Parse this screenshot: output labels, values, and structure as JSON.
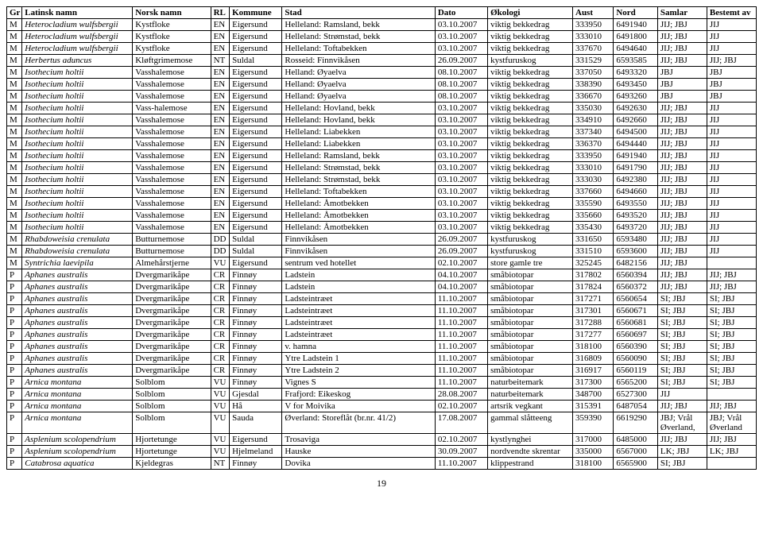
{
  "headers": [
    "Gr",
    "Latinsk namn",
    "Norsk namn",
    "RL",
    "Kommune",
    "Stad",
    "Dato",
    "Økologi",
    "Aust",
    "Nord",
    "Samlar",
    "Bestemt av"
  ],
  "rows": [
    [
      "M",
      "Heterocladium wulfsbergii",
      "Kystfloke",
      "EN",
      "Eigersund",
      "Helleland: Ramsland, bekk",
      "03.10.2007",
      "viktig bekkedrag",
      "333950",
      "6491940",
      "JIJ; JBJ",
      "JIJ"
    ],
    [
      "M",
      "Heterocladium wulfsbergii",
      "Kystfloke",
      "EN",
      "Eigersund",
      "Helleland: Strømstad, bekk",
      "03.10.2007",
      "viktig bekkedrag",
      "333010",
      "6491800",
      "JIJ; JBJ",
      "JIJ"
    ],
    [
      "M",
      "Heterocladium wulfsbergii",
      "Kystfloke",
      "EN",
      "Eigersund",
      "Helleland: Toftabekken",
      "03.10.2007",
      "viktig bekkedrag",
      "337670",
      "6494640",
      "JIJ; JBJ",
      "JIJ"
    ],
    [
      "M",
      "Herbertus aduncus",
      "Kløftgrimemose",
      "NT",
      "Suldal",
      "Rosseid: Finnvikåsen",
      "26.09.2007",
      "kystfuruskog",
      "331529",
      "6593585",
      "JIJ; JBJ",
      "JIJ; JBJ"
    ],
    [
      "M",
      "Isothecium holtii",
      "Vasshalemose",
      "EN",
      "Eigersund",
      "Helland: Øyaelva",
      "08.10.2007",
      "viktig bekkedrag",
      "337050",
      "6493320",
      "JBJ",
      "JBJ"
    ],
    [
      "M",
      "Isothecium holtii",
      "Vasshalemose",
      "EN",
      "Eigersund",
      "Helland: Øyaelva",
      "08.10.2007",
      "viktig bekkedrag",
      "338390",
      "6493450",
      "JBJ",
      "JBJ"
    ],
    [
      "M",
      "Isothecium holtii",
      "Vasshalemose",
      "EN",
      "Eigersund",
      "Helland: Øyaelva",
      "08.10.2007",
      "viktig bekkedrag",
      "336670",
      "6493260",
      "JBJ",
      "JBJ"
    ],
    [
      "M",
      "Isothecium holtii",
      "Vass-halemose",
      "EN",
      "Eigersund",
      "Helleland: Hovland, bekk",
      "03.10.2007",
      "viktig bekkedrag",
      "335030",
      "6492630",
      "JIJ; JBJ",
      "JIJ"
    ],
    [
      "M",
      "Isothecium holtii",
      "Vasshalemose",
      "EN",
      "Eigersund",
      "Helleland: Hovland, bekk",
      "03.10.2007",
      "viktig bekkedrag",
      "334910",
      "6492660",
      "JIJ; JBJ",
      "JIJ"
    ],
    [
      "M",
      "Isothecium holtii",
      "Vasshalemose",
      "EN",
      "Eigersund",
      "Helleland: Liabekken",
      "03.10.2007",
      "viktig bekkedrag",
      "337340",
      "6494500",
      "JIJ; JBJ",
      "JIJ"
    ],
    [
      "M",
      "Isothecium holtii",
      "Vasshalemose",
      "EN",
      "Eigersund",
      "Helleland: Liabekken",
      "03.10.2007",
      "viktig bekkedrag",
      "336370",
      "6494440",
      "JIJ; JBJ",
      "JIJ"
    ],
    [
      "M",
      "Isothecium holtii",
      "Vasshalemose",
      "EN",
      "Eigersund",
      "Helleland: Ramsland, bekk",
      "03.10.2007",
      "viktig bekkedrag",
      "333950",
      "6491940",
      "JIJ; JBJ",
      "JIJ"
    ],
    [
      "M",
      "Isothecium holtii",
      "Vasshalemose",
      "EN",
      "Eigersund",
      "Helleland: Strømstad, bekk",
      "03.10.2007",
      "viktig bekkedrag",
      "333010",
      "6491790",
      "JIJ; JBJ",
      "JIJ"
    ],
    [
      "M",
      "Isothecium holtii",
      "Vasshalemose",
      "EN",
      "Eigersund",
      "Helleland: Strømstad, bekk",
      "03.10.2007",
      "viktig bekkedrag",
      "333030",
      "6492380",
      "JIJ; JBJ",
      "JIJ"
    ],
    [
      "M",
      "Isothecium holtii",
      "Vasshalemose",
      "EN",
      "Eigersund",
      "Helleland: Toftabekken",
      "03.10.2007",
      "viktig bekkedrag",
      "337660",
      "6494660",
      "JIJ; JBJ",
      "JIJ"
    ],
    [
      "M",
      "Isothecium holtii",
      "Vasshalemose",
      "EN",
      "Eigersund",
      "Helleland: Åmotbekken",
      "03.10.2007",
      "viktig bekkedrag",
      "335590",
      "6493550",
      "JIJ; JBJ",
      "JIJ"
    ],
    [
      "M",
      "Isothecium holtii",
      "Vasshalemose",
      "EN",
      "Eigersund",
      "Helleland: Åmotbekken",
      "03.10.2007",
      "viktig bekkedrag",
      "335660",
      "6493520",
      "JIJ; JBJ",
      "JIJ"
    ],
    [
      "M",
      "Isothecium holtii",
      "Vasshalemose",
      "EN",
      "Eigersund",
      "Helleland: Åmotbekken",
      "03.10.2007",
      "viktig bekkedrag",
      "335430",
      "6493720",
      "JIJ; JBJ",
      "JIJ"
    ],
    [
      "M",
      "Rhabdoweisia crenulata",
      "Butturnemose",
      "DD",
      "Suldal",
      "Finnvikåsen",
      "26.09.2007",
      "kystfuruskog",
      "331650",
      "6593480",
      "JIJ; JBJ",
      "JIJ"
    ],
    [
      "M",
      "Rhabdoweisia crenulata",
      "Butturnemose",
      "DD",
      "Suldal",
      "Finnvikåsen",
      "26.09.2007",
      "kystfuruskog",
      "331510",
      "6593600",
      "JIJ; JBJ",
      "JIJ"
    ],
    [
      "M",
      "Syntrichia laevipila",
      "Almehårstjerne",
      "VU",
      "Eigersund",
      "sentrum ved hotellet",
      "02.10.2007",
      "store gamle tre",
      "325245",
      "6482156",
      "JIJ; JBJ",
      ""
    ],
    [
      "P",
      "Aphanes australis",
      "Dvergmarikåpe",
      "CR",
      "Finnøy",
      "Ladstein",
      "04.10.2007",
      "småbiotopar",
      "317802",
      "6560394",
      "JIJ; JBJ",
      "JIJ; JBJ"
    ],
    [
      "P",
      "Aphanes australis",
      "Dvergmarikåpe",
      "CR",
      "Finnøy",
      "Ladstein",
      "04.10.2007",
      "småbiotopar",
      "317824",
      "6560372",
      "JIJ; JBJ",
      "JIJ; JBJ"
    ],
    [
      "P",
      "Aphanes australis",
      "Dvergmarikåpe",
      "CR",
      "Finnøy",
      "Ladsteintræet",
      "11.10.2007",
      "småbiotopar",
      "317271",
      "6560654",
      "SI; JBJ",
      "SI; JBJ"
    ],
    [
      "P",
      "Aphanes australis",
      "Dvergmarikåpe",
      "CR",
      "Finnøy",
      "Ladsteintræet",
      "11.10.2007",
      "småbiotopar",
      "317301",
      "6560671",
      "SI; JBJ",
      "SI; JBJ"
    ],
    [
      "P",
      "Aphanes australis",
      "Dvergmarikåpe",
      "CR",
      "Finnøy",
      "Ladsteintræet",
      "11.10.2007",
      "småbiotopar",
      "317288",
      "6560681",
      "SI; JBJ",
      "SI; JBJ"
    ],
    [
      "P",
      "Aphanes australis",
      "Dvergmarikåpe",
      "CR",
      "Finnøy",
      "Ladsteintræet",
      "11.10.2007",
      "småbiotopar",
      "317277",
      "6560697",
      "SI; JBJ",
      "SI; JBJ"
    ],
    [
      "P",
      "Aphanes australis",
      "Dvergmarikåpe",
      "CR",
      "Finnøy",
      "v. hamna",
      "11.10.2007",
      "småbiotopar",
      "318100",
      "6560390",
      "SI; JBJ",
      "SI; JBJ"
    ],
    [
      "P",
      "Aphanes australis",
      "Dvergmarikåpe",
      "CR",
      "Finnøy",
      "Ytre Ladstein 1",
      "11.10.2007",
      "småbiotopar",
      "316809",
      "6560090",
      "SI; JBJ",
      "SI; JBJ"
    ],
    [
      "P",
      "Aphanes australis",
      "Dvergmarikåpe",
      "CR",
      "Finnøy",
      "Ytre Ladstein 2",
      "11.10.2007",
      "småbiotopar",
      "316917",
      "6560119",
      "SI; JBJ",
      "SI; JBJ"
    ],
    [
      "P",
      "Arnica montana",
      "Solblom",
      "VU",
      "Finnøy",
      "Vignes S",
      "11.10.2007",
      "naturbeitemark",
      "317300",
      "6565200",
      "SI; JBJ",
      "SI; JBJ"
    ],
    [
      "P",
      "Arnica montana",
      "Solblom",
      "VU",
      "Gjesdal",
      "Frafjord: Eikeskog",
      "28.08.2007",
      "naturbeitemark",
      "348700",
      "6527300",
      "JIJ",
      ""
    ],
    [
      "P",
      "Arnica montana",
      "Solblom",
      "VU",
      "Hå",
      "V for Moivika",
      "02.10.2007",
      "artsrik vegkant",
      "315391",
      "6487054",
      "JIJ; JBJ",
      "JIJ; JBJ"
    ],
    [
      "P",
      "Arnica montana",
      "Solblom",
      "VU",
      "Sauda",
      "Øverland: Storeflåt (br.nr. 41/2)",
      "17.08.2007",
      "gammal slåtteeng",
      "359390",
      "6619290",
      "JBJ; Vrål Øverland,",
      "JBJ; Vrål Øverland"
    ],
    [
      "P",
      "Asplenium scolopendrium",
      "Hjortetunge",
      "VU",
      "Eigersund",
      "Trosaviga",
      "02.10.2007",
      "kystlynghei",
      "317000",
      "6485000",
      "JIJ; JBJ",
      "JIJ; JBJ"
    ],
    [
      "P",
      "Asplenium scolopendrium",
      "Hjortetunge",
      "VU",
      "Hjelmeland",
      "Hauske",
      "30.09.2007",
      "nordvendte skrentar",
      "335000",
      "6567000",
      "LK; JBJ",
      "LK; JBJ"
    ],
    [
      "P",
      "Catabrosa aquatica",
      "Kjeldegras",
      "NT",
      "Finnøy",
      "Dovika",
      "11.10.2007",
      "klippestrand",
      "318100",
      "6565900",
      "SI; JBJ",
      ""
    ]
  ],
  "page_number": "19",
  "style": {
    "border_color": "#000000",
    "font_family": "Times New Roman",
    "font_size_pt": 8.2,
    "header_bold": true,
    "italic_latin": true
  }
}
